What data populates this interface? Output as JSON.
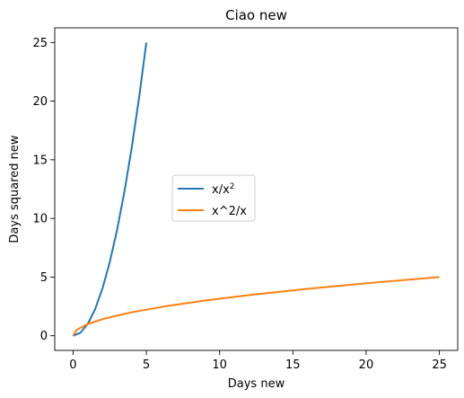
{
  "chart_data": {
    "type": "line",
    "title": "Ciao new",
    "xlabel": "Days new",
    "ylabel": "Days squared new",
    "xlim": [
      -1.25,
      26.25
    ],
    "ylim": [
      -1.25,
      26.25
    ],
    "xticks": [
      0,
      5,
      10,
      15,
      20,
      25
    ],
    "yticks": [
      0,
      5,
      10,
      15,
      20,
      25
    ],
    "grid": false,
    "legend": "center-left",
    "series": [
      {
        "name": "x/x",
        "name_superscript": "2",
        "color": "#1f77b4",
        "x": [
          0,
          0.5,
          1,
          1.5,
          2,
          2.5,
          3,
          3.5,
          4,
          4.5,
          5
        ],
        "y": [
          0,
          0.25,
          1,
          2.25,
          4,
          6.25,
          9,
          12.25,
          16,
          20.25,
          25
        ]
      },
      {
        "name": "x^2/x",
        "color": "#ff7f0e",
        "x": [
          0,
          0.25,
          1,
          2.25,
          4,
          6.25,
          9,
          12.25,
          16,
          20.25,
          25
        ],
        "y": [
          0,
          0.5,
          1,
          1.5,
          2,
          2.5,
          3,
          3.5,
          4,
          4.5,
          5
        ]
      }
    ]
  }
}
